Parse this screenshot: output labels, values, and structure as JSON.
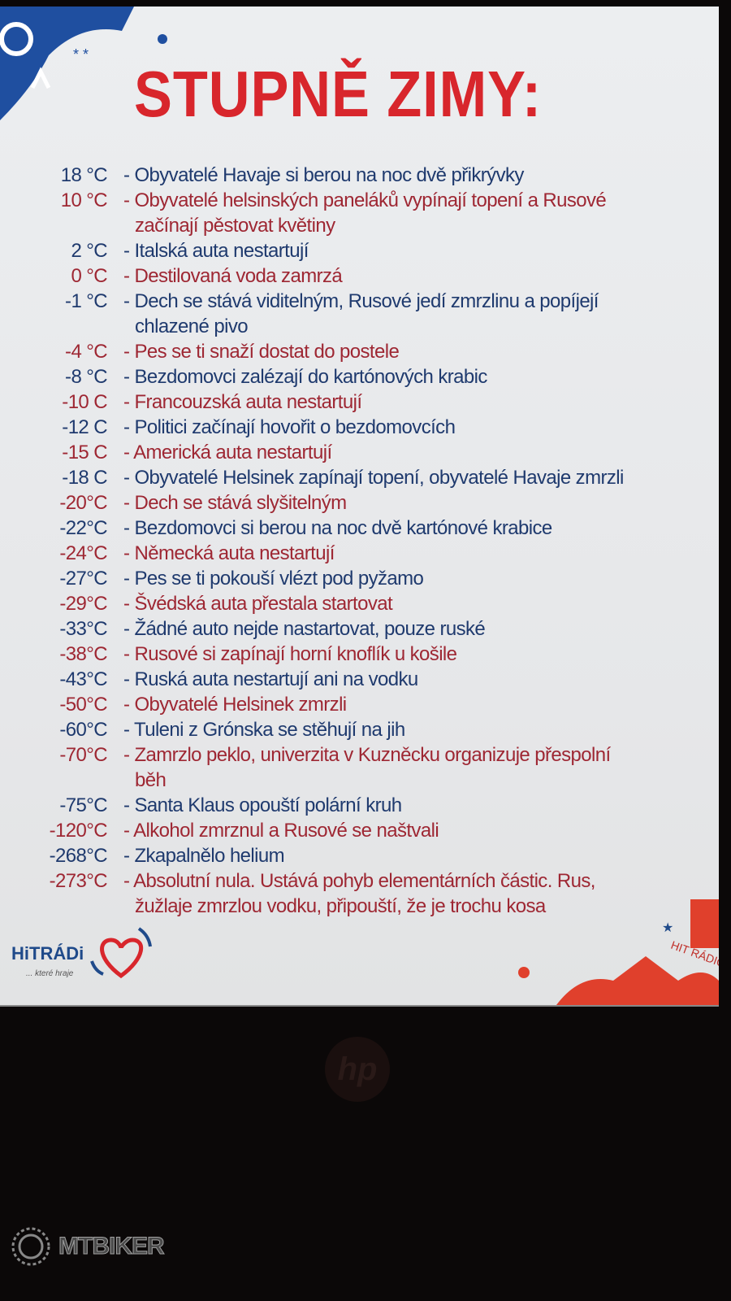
{
  "title": "STUPNĚ ZIMY:",
  "colors": {
    "title": "#d8262c",
    "blue": "#1f3a6e",
    "red": "#9e2733",
    "logo_blue": "#1f4a8a"
  },
  "items": [
    {
      "temp": "18 °C",
      "lines": [
        "- Obyvatelé Havaje si berou na noc dvě přikrývky"
      ]
    },
    {
      "temp": "10 °C",
      "lines": [
        "- Obyvatelé helsinských paneláků vypínají topení a Rusové",
        "začínají pěstovat květiny"
      ]
    },
    {
      "temp": "2 °C",
      "lines": [
        "- Italská auta nestartují"
      ]
    },
    {
      "temp": "0 °C",
      "lines": [
        "- Destilovaná voda zamrzá"
      ]
    },
    {
      "temp": "-1 °C",
      "lines": [
        "- Dech se stává viditelným, Rusové jedí zmrzlinu a popíjejí",
        "chlazené pivo"
      ]
    },
    {
      "temp": "-4 °C",
      "lines": [
        "- Pes se ti snaží dostat do postele"
      ]
    },
    {
      "temp": "-8 °C",
      "lines": [
        "- Bezdomovci zalézají do kartónových krabic"
      ]
    },
    {
      "temp": "-10 C",
      "lines": [
        "- Francouzská auta nestartují"
      ]
    },
    {
      "temp": "-12 C",
      "lines": [
        "-  Politici začínají hovořit o bezdomovcích"
      ]
    },
    {
      "temp": "-15 C",
      "lines": [
        "- Americká auta nestartují"
      ]
    },
    {
      "temp": "-18 C",
      "lines": [
        "- Obyvatelé Helsinek zapínají topení, obyvatelé Havaje zmrzli"
      ]
    },
    {
      "temp": "-20°C",
      "lines": [
        "- Dech se stává slyšitelným"
      ]
    },
    {
      "temp": "-22°C",
      "lines": [
        "- Bezdomovci si berou na noc dvě kartónové krabice"
      ]
    },
    {
      "temp": "-24°C",
      "lines": [
        "- Německá auta nestartují"
      ]
    },
    {
      "temp": "-27°C",
      "lines": [
        "- Pes se ti pokouší vlézt pod pyžamo"
      ]
    },
    {
      "temp": "-29°C",
      "lines": [
        "- Švédská auta přestala startovat"
      ]
    },
    {
      "temp": "-33°C",
      "lines": [
        "- Žádné auto nejde nastartovat, pouze ruské"
      ]
    },
    {
      "temp": "-38°C",
      "lines": [
        "- Rusové si zapínají horní knoflík u košile"
      ]
    },
    {
      "temp": "-43°C",
      "lines": [
        "- Ruská auta nestartují ani na vodku"
      ]
    },
    {
      "temp": "-50°C",
      "lines": [
        "- Obyvatelé Helsinek zmrzli"
      ]
    },
    {
      "temp": "-60°C",
      "lines": [
        "- Tuleni z Grónska se stěhují na jih"
      ]
    },
    {
      "temp": "-70°C",
      "lines": [
        "- Zamrzlo peklo, univerzita v Kuzněcku organizuje přespolní",
        "běh"
      ]
    },
    {
      "temp": "-75°C",
      "lines": [
        "- Santa Klaus opouští polární kruh"
      ]
    },
    {
      "temp": "-120°C",
      "lines": [
        "- Alkohol zmrznul a Rusové se naštvali"
      ]
    },
    {
      "temp": "-268°C",
      "lines": [
        "- Zkapalnělo helium"
      ]
    },
    {
      "temp": "-273°C",
      "lines": [
        "- Absolutní nula. Ustává pohyb elementárních částic. Rus,",
        "žužlaje zmrzlou vodku, připouští, že je trochu kosa"
      ]
    }
  ],
  "logo": {
    "name": "HiTRÁDi",
    "tagline": "... které hraje"
  },
  "monitor_brand": "hp",
  "watermark": "MTBIKER"
}
